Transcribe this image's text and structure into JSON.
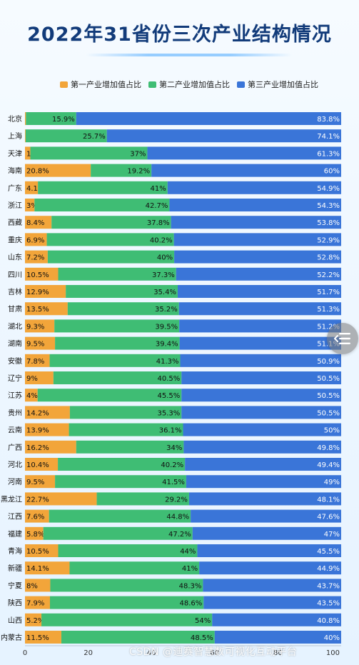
{
  "chart_data": {
    "type": "bar",
    "stacked": true,
    "orientation": "horizontal",
    "title": "2022年31省份三次产业结构情况",
    "xlabel": "",
    "ylabel": "",
    "xlim": [
      0,
      100
    ],
    "x_ticks": [
      "0",
      "20",
      "40",
      "60",
      "80",
      "100"
    ],
    "grid": false,
    "legend_position": "top",
    "categories": [
      "北京",
      "上海",
      "天津",
      "海南",
      "广东",
      "浙江",
      "西藏",
      "重庆",
      "山东",
      "四川",
      "吉林",
      "甘肃",
      "湖北",
      "湖南",
      "安徽",
      "辽宁",
      "江苏",
      "贵州",
      "云南",
      "广西",
      "河北",
      "河南",
      "黑龙江",
      "江西",
      "福建",
      "青海",
      "新疆",
      "宁夏",
      "陕西",
      "山西",
      "内蒙古"
    ],
    "series": [
      {
        "name": "第一产业增加值占比",
        "color": "#f2a53a",
        "values": [
          0.3,
          0.2,
          1.7,
          20.8,
          4.1,
          3,
          8.4,
          6.9,
          7.2,
          10.5,
          12.9,
          13.5,
          9.3,
          9.5,
          7.8,
          9,
          4,
          14.2,
          13.9,
          16.2,
          10.4,
          9.5,
          22.7,
          7.6,
          5.8,
          10.5,
          14.1,
          8,
          7.9,
          5.2,
          11.5
        ]
      },
      {
        "name": "第二产业增加值占比",
        "color": "#3fbd74",
        "values": [
          15.9,
          25.7,
          37,
          19.2,
          41,
          42.7,
          37.8,
          40.2,
          40,
          37.3,
          35.4,
          35.2,
          39.5,
          39.4,
          41.3,
          40.5,
          45.5,
          35.3,
          36.1,
          34,
          40.2,
          41.5,
          29.2,
          44.8,
          47.2,
          44,
          41,
          48.3,
          48.6,
          54,
          48.5
        ]
      },
      {
        "name": "第三产业增加值占比",
        "color": "#3a75d8",
        "values": [
          83.8,
          74.1,
          61.3,
          60,
          54.9,
          54.3,
          53.8,
          52.9,
          52.8,
          52.2,
          51.7,
          51.3,
          51.2,
          51.1,
          50.9,
          50.5,
          50.5,
          50.5,
          50,
          49.8,
          49.4,
          49,
          48.1,
          47.6,
          47,
          45.5,
          44.9,
          43.7,
          43.5,
          40.8,
          40
        ]
      }
    ]
  },
  "ui": {
    "side_button_icon": "list-menu-icon",
    "watermark": "CSDN @迪赛智慧数可视化互动平台"
  }
}
